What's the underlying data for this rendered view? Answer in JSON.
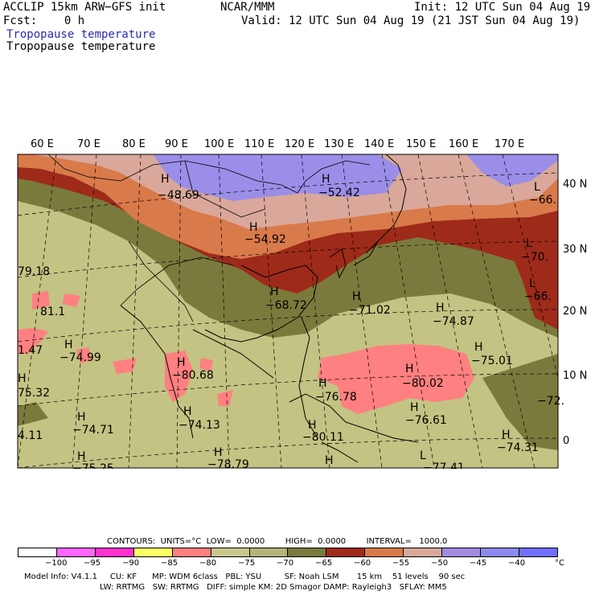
{
  "header": {
    "model": "ACCLIP 15km ARW−GFS init",
    "center": "NCAR/MMM",
    "init": "Init: 12 UTC Sun 04 Aug 19",
    "fcst": "Fcst:    0 h",
    "valid": "Valid: 12 UTC Sun 04 Aug 19 (21 JST Sun 04 Aug 19)",
    "field_title_blue": "Tropopause temperature",
    "field_title_black": "Tropopause temperature"
  },
  "lon_labels": [
    "60 E",
    "70 E",
    "80 E",
    "90 E",
    "100 E",
    "110 E",
    "120 E",
    "130 E",
    "140 E",
    "150 E",
    "160 E",
    "170 E"
  ],
  "lat_labels": [
    "40 N",
    "30 N",
    "20 N",
    "10 N",
    "0"
  ],
  "annotations": [
    {
      "id": "h1",
      "text": "H"
    },
    {
      "id": "v1",
      "text": "−48.69"
    },
    {
      "id": "h2",
      "text": "H"
    },
    {
      "id": "v2",
      "text": "−52.42"
    },
    {
      "id": "h3",
      "text": "H"
    },
    {
      "id": "v3",
      "text": "−54.92"
    },
    {
      "id": "h4",
      "text": "L"
    },
    {
      "id": "v4",
      "text": "−66."
    },
    {
      "id": "h5",
      "text": "L"
    },
    {
      "id": "v5",
      "text": "−70."
    },
    {
      "id": "h6",
      "text": "L"
    },
    {
      "id": "v6",
      "text": "−66."
    },
    {
      "id": "v7",
      "text": "79.18"
    },
    {
      "id": "v8",
      "text": "81.1"
    },
    {
      "id": "h9",
      "text": "H"
    },
    {
      "id": "v9",
      "text": "−68.72"
    },
    {
      "id": "h10",
      "text": "H"
    },
    {
      "id": "v10",
      "text": "−71.02"
    },
    {
      "id": "h11",
      "text": "H"
    },
    {
      "id": "v11",
      "text": "−74.87"
    },
    {
      "id": "h12",
      "text": "H"
    },
    {
      "id": "v12",
      "text": "−75.01"
    },
    {
      "id": "v13",
      "text": "1.47"
    },
    {
      "id": "h14",
      "text": "H"
    },
    {
      "id": "v14",
      "text": "−74.99"
    },
    {
      "id": "h15",
      "text": "H"
    },
    {
      "id": "v15",
      "text": "−80.68"
    },
    {
      "id": "h16",
      "text": "H"
    },
    {
      "id": "v16",
      "text": "−80.02"
    },
    {
      "id": "h17",
      "text": "H"
    },
    {
      "id": "v17",
      "text": "75.32"
    },
    {
      "id": "h18",
      "text": "H"
    },
    {
      "id": "v18",
      "text": "−76.78"
    },
    {
      "id": "h19",
      "text": "H"
    },
    {
      "id": "v19",
      "text": "−74.13"
    },
    {
      "id": "h20",
      "text": "H"
    },
    {
      "id": "v20",
      "text": "−74.71"
    },
    {
      "id": "h21",
      "text": "H"
    },
    {
      "id": "v21",
      "text": "−76.61"
    },
    {
      "id": "v22",
      "text": "−72."
    },
    {
      "id": "v23",
      "text": "4.11"
    },
    {
      "id": "h24",
      "text": "H"
    },
    {
      "id": "v24",
      "text": "−80.11"
    },
    {
      "id": "h25",
      "text": "H"
    },
    {
      "id": "v25",
      "text": "−74.31"
    },
    {
      "id": "h26",
      "text": "H"
    },
    {
      "id": "v26",
      "text": "−75.25"
    },
    {
      "id": "h27",
      "text": "H"
    },
    {
      "id": "v27",
      "text": "−78.79"
    },
    {
      "id": "h28",
      "text": "H"
    },
    {
      "id": "h29",
      "text": "L"
    },
    {
      "id": "v29",
      "text": "−77.41"
    }
  ],
  "legend": {
    "contours": "CONTOURS:  UNITS=°C  LOW=  0.0000        HIGH=  0.0000        INTERVAL=   1000.0",
    "colors": [
      "#ffffff",
      "#ff66ff",
      "#ff33cc",
      "#ffff66",
      "#ff8080",
      "#c8c88c",
      "#b4b478",
      "#7a7a3c",
      "#9e2a1a",
      "#d97a4a",
      "#d9a89a",
      "#a08ce0",
      "#8a8af0",
      "#7070ff"
    ],
    "labels": [
      "−100",
      "−95",
      "−90",
      "−85",
      "−80",
      "−75",
      "−70",
      "−65",
      "−60",
      "−55",
      "−50",
      "−45",
      "−40",
      "°C"
    ],
    "footer1": "Model Info: V4.1.1     CU: KF      MP: WDM 6class   PBL: YSU         SF: Noah LSM       15 km    51 levels    90 sec",
    "footer2": "LW: RRTMG   SW: RRTMG   DIFF: simple KM: 2D Smagor DAMP: Rayleigh3   SFLAY: MM5"
  },
  "colors": {
    "purple": "#9a8ee8",
    "pink_tan": "#d9a89a",
    "orange": "#d97a4a",
    "dark_red": "#9e2a1a",
    "olive": "#7a7a3c",
    "khaki": "#c3c383",
    "salmon": "#ff8080"
  }
}
